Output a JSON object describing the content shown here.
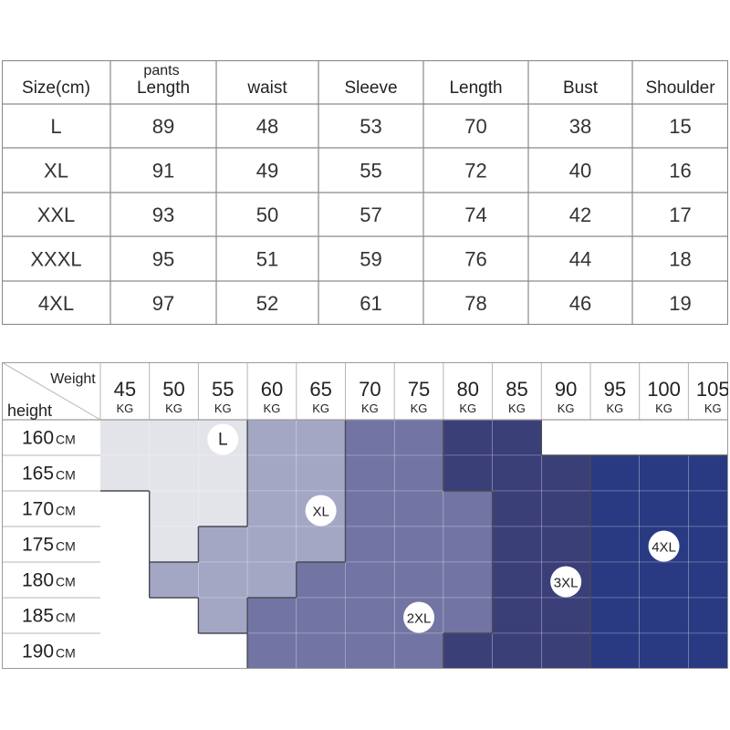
{
  "size_table": {
    "header_top": [
      "",
      "pants",
      "",
      "",
      "",
      "",
      ""
    ],
    "header": [
      "Size(cm)",
      "Length",
      "waist",
      "Sleeve",
      "Length",
      "Bust",
      "Shoulder"
    ],
    "rows": [
      [
        "L",
        "89",
        "48",
        "53",
        "70",
        "38",
        "15"
      ],
      [
        "XL",
        "91",
        "49",
        "55",
        "72",
        "40",
        "16"
      ],
      [
        "XXL",
        "93",
        "50",
        "57",
        "74",
        "42",
        "17"
      ],
      [
        "XXXL",
        "95",
        "51",
        "59",
        "76",
        "44",
        "18"
      ],
      [
        "4XL",
        "97",
        "52",
        "61",
        "78",
        "46",
        "19"
      ]
    ]
  },
  "chart_data": {
    "type": "heatmap",
    "corner_top_label": "Weight",
    "corner_bottom_label": "height",
    "x": [
      "45",
      "50",
      "55",
      "60",
      "65",
      "70",
      "75",
      "80",
      "85",
      "90",
      "95",
      "100",
      "105"
    ],
    "x_unit": "KG",
    "y": [
      "160",
      "165",
      "170",
      "175",
      "180",
      "185",
      "190"
    ],
    "y_unit": "CM",
    "categories": [
      "",
      "L",
      "XL",
      "2XL",
      "3XL",
      "4XL"
    ],
    "colors": [
      "#ffffff",
      "#e3e4ea",
      "#a3a7c4",
      "#7275a3",
      "#3a3f78",
      "#293a82"
    ],
    "grid": [
      [
        1,
        1,
        1,
        2,
        2,
        3,
        3,
        4,
        4,
        0,
        0,
        0,
        0
      ],
      [
        1,
        1,
        1,
        2,
        2,
        3,
        3,
        4,
        4,
        4,
        5,
        5,
        5
      ],
      [
        0,
        1,
        1,
        2,
        2,
        3,
        3,
        3,
        4,
        4,
        5,
        5,
        5
      ],
      [
        0,
        1,
        2,
        2,
        2,
        3,
        3,
        3,
        4,
        4,
        5,
        5,
        5
      ],
      [
        0,
        2,
        2,
        2,
        3,
        3,
        3,
        3,
        4,
        4,
        5,
        5,
        5
      ],
      [
        0,
        0,
        2,
        3,
        3,
        3,
        3,
        3,
        4,
        4,
        5,
        5,
        5
      ],
      [
        0,
        0,
        0,
        3,
        3,
        3,
        3,
        4,
        4,
        4,
        5,
        5,
        5
      ]
    ],
    "badges": [
      {
        "label": "L",
        "col": 2,
        "row": 0
      },
      {
        "label": "XL",
        "col": 4,
        "row": 2
      },
      {
        "label": "2XL",
        "col": 6,
        "row": 5
      },
      {
        "label": "3XL",
        "col": 9,
        "row": 4
      },
      {
        "label": "4XL",
        "col": 11,
        "row": 3
      }
    ]
  }
}
